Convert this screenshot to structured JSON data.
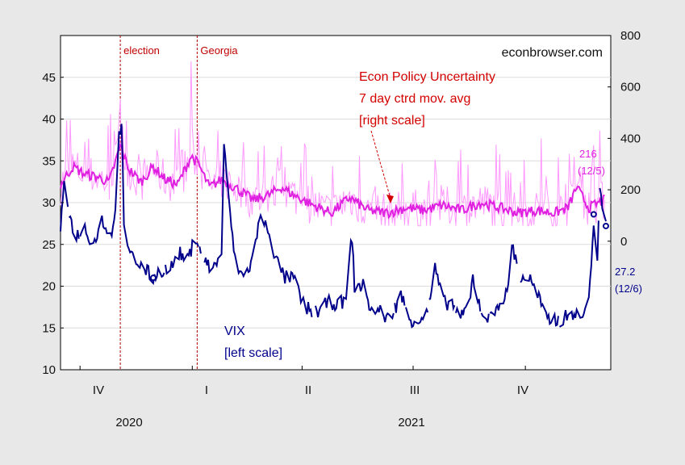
{
  "chart_data": {
    "type": "line",
    "watermark": "econbrowser.com",
    "x_range": [
      "2020-09-15",
      "2021-12-10"
    ],
    "quarter_ticks": [
      {
        "date": "2020-10-01",
        "label": "IV"
      },
      {
        "date": "2021-01-01",
        "label": "I"
      },
      {
        "date": "2021-04-01",
        "label": "II"
      },
      {
        "date": "2021-07-01",
        "label": "III"
      },
      {
        "date": "2021-10-01",
        "label": "IV"
      }
    ],
    "year_labels": [
      {
        "date": "2020-11-01",
        "label": "2020"
      },
      {
        "date": "2021-07-01",
        "label": "2021"
      }
    ],
    "left_axis": {
      "ylim": [
        10,
        50
      ],
      "ticks": [
        10,
        15,
        20,
        25,
        30,
        35,
        40,
        45
      ]
    },
    "right_axis": {
      "ylim": [
        -500,
        800
      ],
      "ticks": [
        0,
        200,
        400,
        600,
        800
      ]
    },
    "events": [
      {
        "date": "2020-11-03",
        "label": "election"
      },
      {
        "date": "2021-01-05",
        "label": "Georgia"
      }
    ],
    "series": [
      {
        "name": "VIX",
        "axis": "left",
        "color": "#00008b",
        "annotation": [
          "VIX",
          "[left scale]"
        ],
        "anchors": [
          [
            "2020-09-15",
            26
          ],
          [
            "2020-09-18",
            33
          ],
          [
            "2020-09-23",
            28
          ],
          [
            "2020-09-28",
            26
          ],
          [
            "2020-10-05",
            27
          ],
          [
            "2020-10-12",
            25
          ],
          [
            "2020-10-19",
            28
          ],
          [
            "2020-10-26",
            26
          ],
          [
            "2020-10-30",
            29
          ],
          [
            "2020-11-02",
            38
          ],
          [
            "2020-11-04",
            40
          ],
          [
            "2020-11-06",
            28
          ],
          [
            "2020-11-09",
            24
          ],
          [
            "2020-11-16",
            23
          ],
          [
            "2020-11-23",
            22
          ],
          [
            "2020-11-30",
            21
          ],
          [
            "2020-12-07",
            22
          ],
          [
            "2020-12-14",
            22
          ],
          [
            "2020-12-21",
            24
          ],
          [
            "2020-12-28",
            23
          ],
          [
            "2021-01-04",
            26
          ],
          [
            "2021-01-11",
            23
          ],
          [
            "2021-01-18",
            22
          ],
          [
            "2021-01-25",
            24
          ],
          [
            "2021-01-27",
            37
          ],
          [
            "2021-01-29",
            33
          ],
          [
            "2021-02-05",
            23
          ],
          [
            "2021-02-12",
            21
          ],
          [
            "2021-02-19",
            23
          ],
          [
            "2021-02-25",
            28
          ],
          [
            "2021-03-04",
            27
          ],
          [
            "2021-03-11",
            23
          ],
          [
            "2021-03-18",
            21
          ],
          [
            "2021-03-25",
            21
          ],
          [
            "2021-04-01",
            18
          ],
          [
            "2021-04-08",
            17
          ],
          [
            "2021-04-15",
            17
          ],
          [
            "2021-04-22",
            18
          ],
          [
            "2021-04-29",
            18
          ],
          [
            "2021-05-06",
            18
          ],
          [
            "2021-05-12",
            26
          ],
          [
            "2021-05-14",
            20
          ],
          [
            "2021-05-21",
            20
          ],
          [
            "2021-05-28",
            17
          ],
          [
            "2021-06-04",
            17
          ],
          [
            "2021-06-11",
            16
          ],
          [
            "2021-06-18",
            18
          ],
          [
            "2021-06-21",
            19
          ],
          [
            "2021-06-28",
            16
          ],
          [
            "2021-07-06",
            16
          ],
          [
            "2021-07-13",
            17
          ],
          [
            "2021-07-19",
            22
          ],
          [
            "2021-07-26",
            18
          ],
          [
            "2021-08-02",
            18
          ],
          [
            "2021-08-09",
            16
          ],
          [
            "2021-08-16",
            18
          ],
          [
            "2021-08-19",
            21
          ],
          [
            "2021-08-26",
            17
          ],
          [
            "2021-09-02",
            16
          ],
          [
            "2021-09-09",
            18
          ],
          [
            "2021-09-16",
            19
          ],
          [
            "2021-09-20",
            25
          ],
          [
            "2021-09-27",
            21
          ],
          [
            "2021-10-04",
            21
          ],
          [
            "2021-10-11",
            19
          ],
          [
            "2021-10-18",
            16
          ],
          [
            "2021-10-25",
            16
          ],
          [
            "2021-11-01",
            16
          ],
          [
            "2021-11-08",
            17
          ],
          [
            "2021-11-15",
            16
          ],
          [
            "2021-11-22",
            18
          ],
          [
            "2021-11-26",
            28
          ],
          [
            "2021-11-29",
            23
          ],
          [
            "2021-12-01",
            31
          ],
          [
            "2021-12-03",
            30
          ],
          [
            "2021-12-06",
            27.2
          ]
        ],
        "last_value": "27.2",
        "last_date": "(12/6)"
      },
      {
        "name": "Econ Policy Uncertainty",
        "axis": "right",
        "color": "#ff99ff",
        "annotation": [
          "Econ Policy Uncertainty",
          "7 day ctrd mov. avg",
          "[right scale]"
        ],
        "ma_color": "#e020e0",
        "ma_anchors": [
          [
            "2020-09-15",
            220
          ],
          [
            "2020-09-25",
            290
          ],
          [
            "2020-10-05",
            260
          ],
          [
            "2020-10-15",
            250
          ],
          [
            "2020-10-25",
            230
          ],
          [
            "2020-11-03",
            370
          ],
          [
            "2020-11-10",
            280
          ],
          [
            "2020-11-20",
            230
          ],
          [
            "2020-11-30",
            290
          ],
          [
            "2020-12-10",
            240
          ],
          [
            "2020-12-20",
            220
          ],
          [
            "2020-12-31",
            330
          ],
          [
            "2021-01-06",
            300
          ],
          [
            "2021-01-15",
            210
          ],
          [
            "2021-01-25",
            240
          ],
          [
            "2021-02-05",
            210
          ],
          [
            "2021-02-20",
            160
          ],
          [
            "2021-03-05",
            180
          ],
          [
            "2021-03-15",
            210
          ],
          [
            "2021-03-25",
            180
          ],
          [
            "2021-04-10",
            140
          ],
          [
            "2021-04-25",
            110
          ],
          [
            "2021-05-10",
            170
          ],
          [
            "2021-05-25",
            120
          ],
          [
            "2021-06-10",
            110
          ],
          [
            "2021-06-25",
            130
          ],
          [
            "2021-07-10",
            120
          ],
          [
            "2021-07-25",
            140
          ],
          [
            "2021-08-10",
            120
          ],
          [
            "2021-08-25",
            150
          ],
          [
            "2021-09-10",
            130
          ],
          [
            "2021-09-25",
            110
          ],
          [
            "2021-10-10",
            120
          ],
          [
            "2021-10-25",
            110
          ],
          [
            "2021-11-05",
            130
          ],
          [
            "2021-11-12",
            210
          ],
          [
            "2021-11-22",
            130
          ],
          [
            "2021-12-05",
            160
          ]
        ],
        "last_value": "216",
        "last_date": "(12/5)"
      }
    ]
  }
}
